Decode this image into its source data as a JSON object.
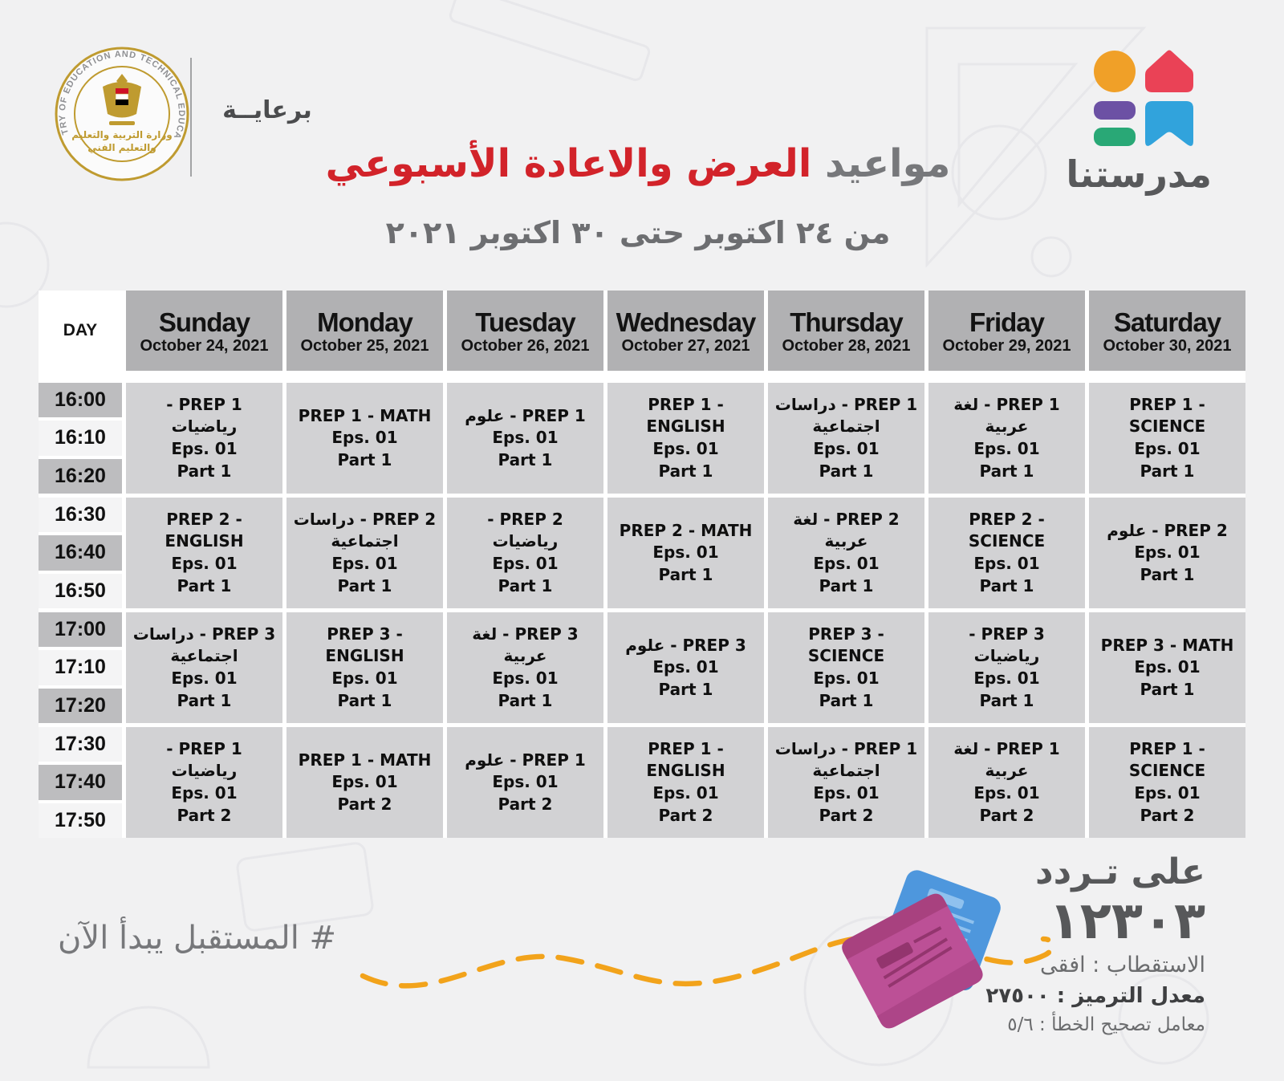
{
  "header": {
    "ministry_seal": {
      "ring_text": "MINISTRY OF EDUCATION AND TECHNICAL EDUCATION",
      "arabic_line1": "وزارة التربية والتعليم",
      "arabic_line2": "والتعليم الفني"
    },
    "sponsor_label": "برعايــة",
    "title": {
      "gray_part": "مواعيد",
      "red_part": "العرض والاعادة الأسبوعي"
    },
    "subtitle": "من ٢٤ اكتوبر حتى ٣٠ اكتوبر ٢٠٢١",
    "brand_name": "مدرستنا"
  },
  "table": {
    "day_label": "DAY",
    "columns": [
      {
        "day": "Sunday",
        "date": "October 24, 2021"
      },
      {
        "day": "Monday",
        "date": "October 25, 2021"
      },
      {
        "day": "Tuesday",
        "date": "October 26, 2021"
      },
      {
        "day": "Wednesday",
        "date": "October 27, 2021"
      },
      {
        "day": "Thursday",
        "date": "October 28, 2021"
      },
      {
        "day": "Friday",
        "date": "October 29, 2021"
      },
      {
        "day": "Saturday",
        "date": "October 30, 2021"
      }
    ],
    "rows": [
      {
        "times": [
          "16:00",
          "16:10",
          "16:20"
        ],
        "cells": [
          {
            "title": "PREP 1 - رياضيات",
            "eps": "Eps. 01",
            "part": "Part 1"
          },
          {
            "title": "PREP 1 - MATH",
            "eps": "Eps. 01",
            "part": "Part 1"
          },
          {
            "title": "PREP 1 - علوم",
            "eps": "Eps. 01",
            "part": "Part 1"
          },
          {
            "title": "PREP 1 - ENGLISH",
            "eps": "Eps. 01",
            "part": "Part 1"
          },
          {
            "title": "PREP 1 - دراسات اجتماعية",
            "eps": "Eps. 01",
            "part": "Part 1"
          },
          {
            "title": "PREP 1 - لغة عربية",
            "eps": "Eps. 01",
            "part": "Part 1"
          },
          {
            "title": "PREP 1 - SCIENCE",
            "eps": "Eps. 01",
            "part": "Part 1"
          }
        ]
      },
      {
        "times": [
          "16:30",
          "16:40",
          "16:50"
        ],
        "cells": [
          {
            "title": "PREP 2 - ENGLISH",
            "eps": "Eps. 01",
            "part": "Part 1"
          },
          {
            "title": "PREP 2 - دراسات اجتماعية",
            "eps": "Eps. 01",
            "part": "Part 1"
          },
          {
            "title": "PREP 2 - رياضيات",
            "eps": "Eps. 01",
            "part": "Part 1"
          },
          {
            "title": "PREP 2 - MATH",
            "eps": "Eps. 01",
            "part": "Part 1"
          },
          {
            "title": "PREP 2 - لغة عربية",
            "eps": "Eps. 01",
            "part": "Part 1"
          },
          {
            "title": "PREP 2 - SCIENCE",
            "eps": "Eps. 01",
            "part": "Part 1"
          },
          {
            "title": "PREP 2 - علوم",
            "eps": "Eps. 01",
            "part": "Part 1"
          }
        ]
      },
      {
        "times": [
          "17:00",
          "17:10",
          "17:20"
        ],
        "cells": [
          {
            "title": "PREP 3 - دراسات اجتماعية",
            "eps": "Eps. 01",
            "part": "Part 1"
          },
          {
            "title": "PREP 3 - ENGLISH",
            "eps": "Eps. 01",
            "part": "Part 1"
          },
          {
            "title": "PREP 3 - لغة عربية",
            "eps": "Eps. 01",
            "part": "Part 1"
          },
          {
            "title": "PREP 3 - علوم",
            "eps": "Eps. 01",
            "part": "Part 1"
          },
          {
            "title": "PREP 3 - SCIENCE",
            "eps": "Eps. 01",
            "part": "Part 1"
          },
          {
            "title": "PREP 3 - رياضيات",
            "eps": "Eps. 01",
            "part": "Part 1"
          },
          {
            "title": "PREP 3 - MATH",
            "eps": "Eps. 01",
            "part": "Part 1"
          }
        ]
      },
      {
        "times": [
          "17:30",
          "17:40",
          "17:50"
        ],
        "cells": [
          {
            "title": "PREP 1 - رياضيات",
            "eps": "Eps. 01",
            "part": "Part 2"
          },
          {
            "title": "PREP 1 - MATH",
            "eps": "Eps. 01",
            "part": "Part 2"
          },
          {
            "title": "PREP 1 - علوم",
            "eps": "Eps. 01",
            "part": "Part 2"
          },
          {
            "title": "PREP 1 - ENGLISH",
            "eps": "Eps. 01",
            "part": "Part 2"
          },
          {
            "title": "PREP 1 - دراسات اجتماعية",
            "eps": "Eps. 01",
            "part": "Part 2"
          },
          {
            "title": "PREP 1 - لغة عربية",
            "eps": "Eps. 01",
            "part": "Part 2"
          },
          {
            "title": "PREP 1 - SCIENCE",
            "eps": "Eps. 01",
            "part": "Part 2"
          }
        ]
      }
    ]
  },
  "footer": {
    "hashtag": "# المستقبل يبدأ الآن",
    "frequency_label": "على تـردد",
    "frequency_value": "١٢٣٠٣",
    "polarization": "الاستقطاب : افقى",
    "symbol_rate": "معدل الترميز : ٢٧٥٠٠",
    "fec": "معامل تصحيح الخطأ : ٥/٦"
  },
  "colors": {
    "page_bg": "#f1f1f2",
    "accent_red": "#d2232a",
    "gray_text": "#77787b",
    "header_cell": "#b1b1b3",
    "time_cell_dark": "#bdbdbf",
    "time_cell_light": "#f4f4f5",
    "program_cell": "#d2d2d4",
    "brand_orange": "#f0a028",
    "brand_red": "#ea4256",
    "brand_purple": "#6c51a4",
    "brand_green": "#29a876",
    "brand_blue": "#31a3dc",
    "dash_orange": "#f2a31b",
    "book_blue": "#4e97dd",
    "book_pink": "#bc5096",
    "seal_gold": "#bf9b30"
  }
}
